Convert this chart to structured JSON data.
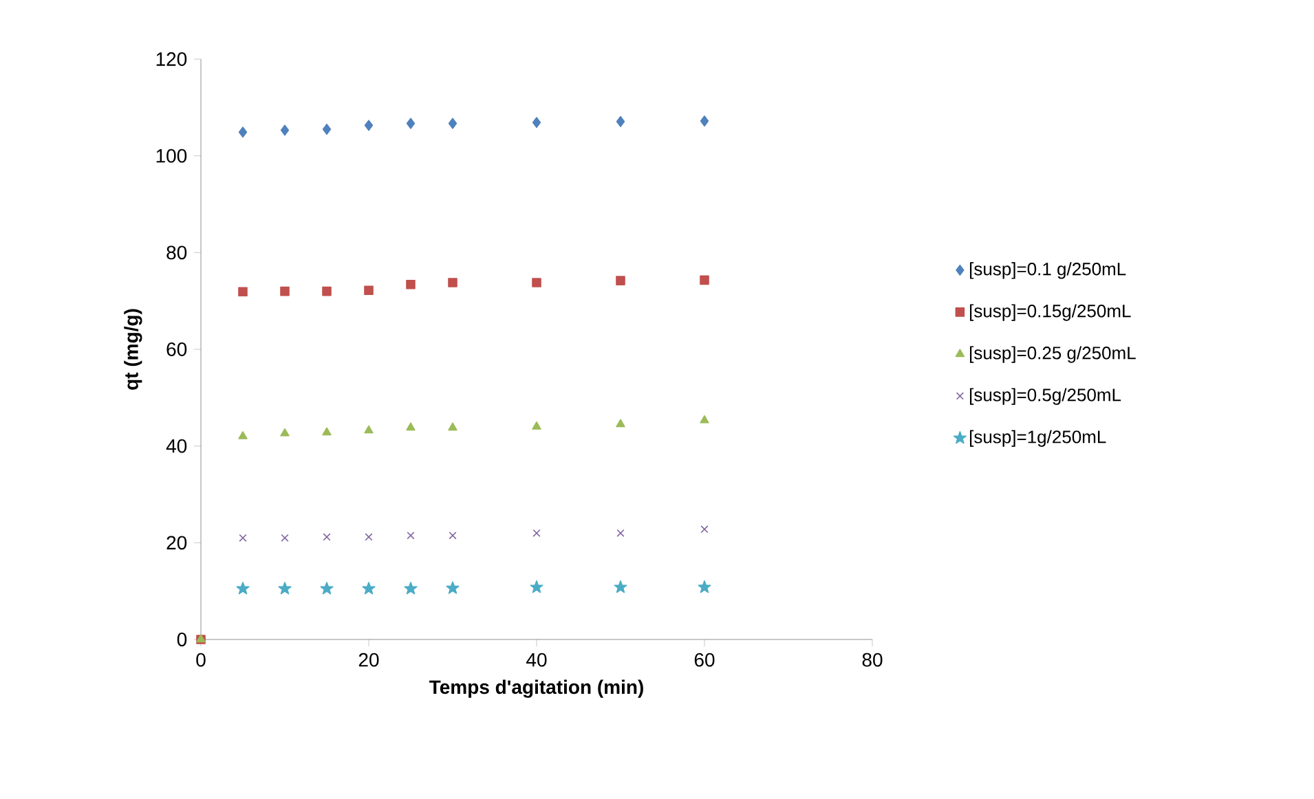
{
  "chart_data": {
    "type": "scatter",
    "xlabel": "Temps d'agitation (min)",
    "ylabel": "qt (mg/g)",
    "x": [
      0,
      5,
      10,
      15,
      20,
      25,
      30,
      40,
      50,
      60
    ],
    "series": [
      {
        "name": "[susp]=0.1 g/250mL",
        "color": "#4f81bd",
        "marker": "diamond",
        "values": [
          null,
          104.9,
          105.3,
          105.5,
          106.3,
          106.7,
          106.7,
          106.9,
          107.1,
          107.2
        ]
      },
      {
        "name": "[susp]=0.15g/250mL",
        "color": "#c0504d",
        "marker": "square",
        "values": [
          0,
          71.9,
          72,
          72,
          72.2,
          73.4,
          73.8,
          73.8,
          74.2,
          74.3
        ]
      },
      {
        "name": "[susp]=0.25 g/250mL",
        "color": "#9bbb59",
        "marker": "triangle",
        "values": [
          0,
          42,
          42.6,
          42.8,
          43.2,
          43.8,
          43.8,
          44,
          44.5,
          45.3
        ]
      },
      {
        "name": "[susp]=0.5g/250mL",
        "color": "#8064a2",
        "marker": "cross",
        "values": [
          null,
          21,
          21,
          21.2,
          21.2,
          21.5,
          21.5,
          22,
          22,
          22.8
        ]
      },
      {
        "name": "[susp]=1g/250mL",
        "color": "#4bacc6",
        "marker": "star",
        "values": [
          null,
          10.5,
          10.5,
          10.5,
          10.5,
          10.5,
          10.6,
          10.8,
          10.8,
          10.8
        ]
      }
    ],
    "xlim": [
      0,
      80
    ],
    "xticks": [
      0,
      20,
      40,
      60,
      80
    ],
    "ylim": [
      0,
      120
    ],
    "yticks": [
      0,
      20,
      40,
      60,
      80,
      100,
      120
    ],
    "legend": "right",
    "grid": false
  }
}
